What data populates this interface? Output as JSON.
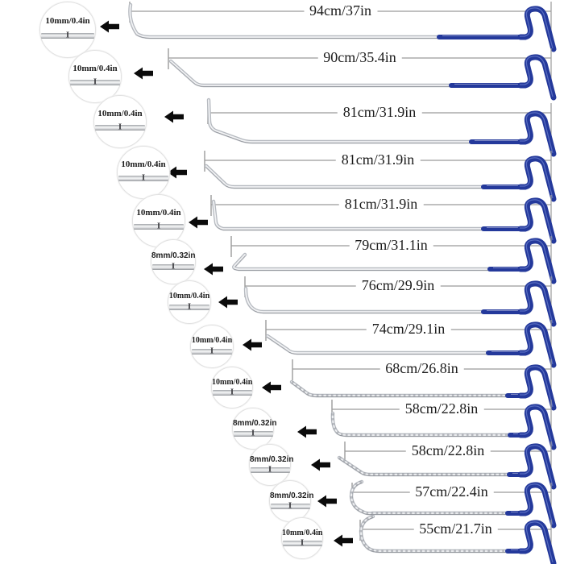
{
  "diagram": {
    "rows": [
      {
        "tip_size": "10mm/0.4in",
        "length": "94cm/37in"
      },
      {
        "tip_size": "10mm/0.4in",
        "length": "90cm/35.4in"
      },
      {
        "tip_size": "10mm/0.4in",
        "length": "81cm/31.9in"
      },
      {
        "tip_size": "10mm/0.4in",
        "length": "81cm/31.9in"
      },
      {
        "tip_size": "10mm/0.4in",
        "length": "81cm/31.9in"
      },
      {
        "tip_size": "8mm/0.32in",
        "length": "79cm/31.1in"
      },
      {
        "tip_size": "10mm/0.4in",
        "length": "76cm/29.9in"
      },
      {
        "tip_size": "10mm/0.4in",
        "length": "74cm/29.1in"
      },
      {
        "tip_size": "10mm/0.4in",
        "length": "68cm/26.8in"
      },
      {
        "tip_size": "8mm/0.32in",
        "length": "58cm/22.8in"
      },
      {
        "tip_size": "8mm/0.32in",
        "length": "58cm/22.8in"
      },
      {
        "tip_size": "8mm/0.32in",
        "length": "57cm/22.4in"
      },
      {
        "tip_size": "10mm/0.4in",
        "length": "55cm/21.7in"
      }
    ],
    "tip_pin_glyph": "I",
    "colors": {
      "handle_blue": "#24399b",
      "rod_silver": "#b6bac0",
      "arrow_black": "#0b0b0b",
      "dimension_line_gray": "#9b9b9b"
    }
  }
}
